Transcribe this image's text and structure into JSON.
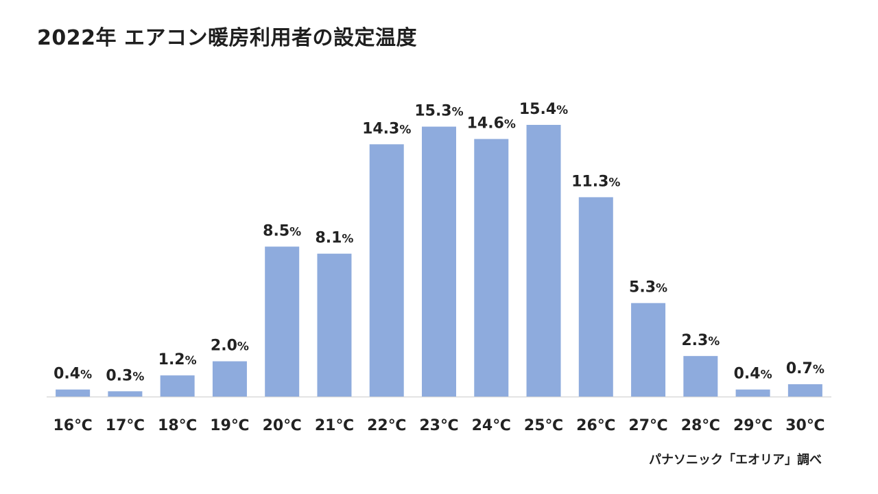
{
  "title": "2022年 エアコン暖房利用者の設定温度",
  "source": "パナソニック「エオリア」調べ",
  "colors": {
    "bar": "#8eabdd",
    "axis": "#d9d9d9",
    "text": "#222222"
  },
  "chart_data": {
    "type": "bar",
    "title": "2022年 エアコン暖房利用者の設定温度",
    "xlabel": "",
    "ylabel": "",
    "categories": [
      "16℃",
      "17℃",
      "18℃",
      "19℃",
      "20℃",
      "21℃",
      "22℃",
      "23℃",
      "24℃",
      "25℃",
      "26℃",
      "27℃",
      "28℃",
      "29℃",
      "30℃"
    ],
    "values": [
      0.4,
      0.3,
      1.2,
      2.0,
      8.5,
      8.1,
      14.3,
      15.3,
      14.6,
      15.4,
      11.3,
      5.3,
      2.3,
      0.4,
      0.7
    ],
    "value_labels": [
      "0.4",
      "0.3",
      "1.2",
      "2.0",
      "8.5",
      "8.1",
      "14.3",
      "15.3",
      "14.6",
      "15.4",
      "11.3",
      "5.3",
      "2.3",
      "0.4",
      "0.7"
    ],
    "value_suffix": "%",
    "ylim": [
      0,
      16
    ],
    "grid": false,
    "legend": "none"
  }
}
